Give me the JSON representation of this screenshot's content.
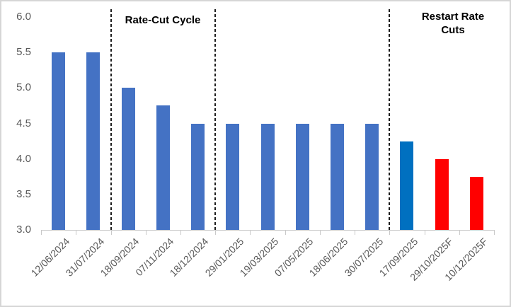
{
  "chart_data": {
    "type": "bar",
    "title": "",
    "xlabel": "",
    "ylabel": "",
    "categories": [
      "12/06/2024",
      "31/07/2024",
      "18/09/2024",
      "07/11/2024",
      "18/12/2024",
      "29/01/2025",
      "19/03/2025",
      "07/05/2025",
      "18/06/2025",
      "30/07/2025",
      "17/09/2025",
      "29/10/2025F",
      "10/12/2025F"
    ],
    "values": [
      5.5,
      5.5,
      5.0,
      4.75,
      4.5,
      4.5,
      4.5,
      4.5,
      4.5,
      4.5,
      4.25,
      4.0,
      3.75
    ],
    "bar_colors": [
      "#4472C4",
      "#4472C4",
      "#4472C4",
      "#4472C4",
      "#4472C4",
      "#4472C4",
      "#4472C4",
      "#4472C4",
      "#4472C4",
      "#4472C4",
      "#0070C0",
      "#FF0000",
      "#FF0000"
    ],
    "colors": {
      "historical": "#4472C4",
      "latest_meeting": "#0070C0",
      "forecast": "#FF0000"
    },
    "ylim": [
      3.0,
      6.0
    ],
    "ytick_labels": [
      "6.0",
      "5.5",
      "5.0",
      "4.5",
      "4.0",
      "3.5",
      "3.0"
    ],
    "grid": "off",
    "legend": "none",
    "axis_text_color": "#595959",
    "separators_after_category_index": [
      1,
      4,
      9
    ],
    "annotations": [
      {
        "text": "Rate-Cut Cycle"
      },
      {
        "text": "Restart Rate Cuts"
      }
    ]
  }
}
